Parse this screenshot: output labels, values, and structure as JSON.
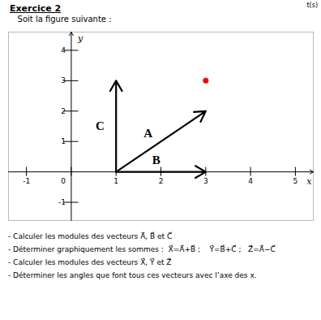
{
  "chart_data": {
    "type": "vector",
    "title": "Exercice 2",
    "subtitle": "   Soit la figure suivante :",
    "annotations": [
      "t(s)"
    ],
    "caption": [
      "- Calculer les modules des vecteurs A⃗, B⃗ et C⃗",
      "- Déterminer graphiquement les sommes :  X⃗=A⃗+B⃗ ;    Y⃗=B⃗+C⃗ ;   Z⃗=A⃗−C⃗",
      "- Calculer les modules des vecteurs X⃗, Y⃗ et Z⃗",
      "- Déterminer les angles que font tous ces vecteurs avec l’axe des x."
    ],
    "x_label": "x",
    "y_label": "y",
    "xlim": [
      -1.4,
      5.4
    ],
    "ylim": [
      -1.6,
      4.6
    ],
    "xticks": [
      -1,
      0,
      1,
      2,
      3,
      4,
      5
    ],
    "yticks": [
      -1,
      1,
      2,
      3,
      4
    ],
    "grid": false,
    "color": "black",
    "vectors": [
      {
        "name": "A⃗",
        "start": [
          1,
          0
        ],
        "end": [
          3,
          2
        ]
      },
      {
        "name": "B⃗",
        "start": [
          1,
          0
        ],
        "end": [
          3,
          0
        ]
      },
      {
        "name": "C⃗",
        "start": [
          1,
          0
        ],
        "end": [
          1,
          3
        ]
      }
    ],
    "points": [
      {
        "x": 3,
        "y": 3,
        "color": "red"
      }
    ]
  }
}
